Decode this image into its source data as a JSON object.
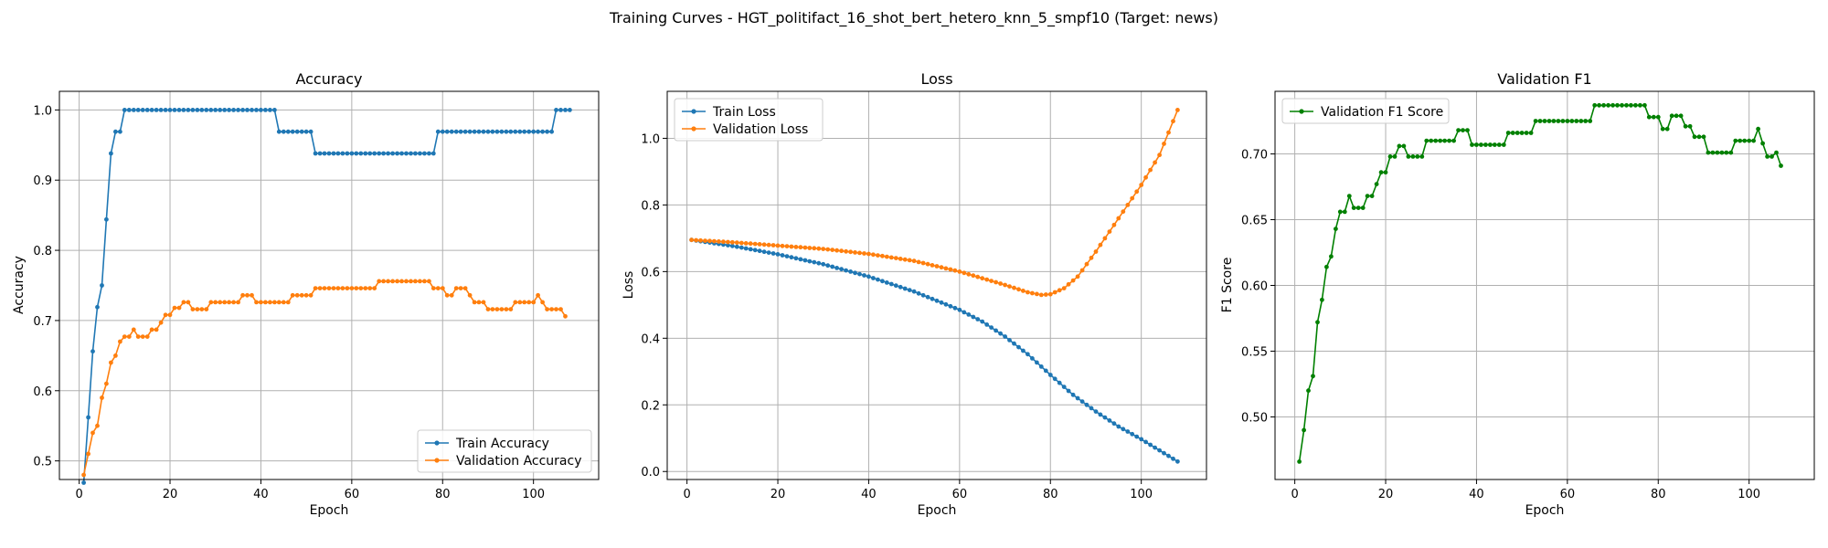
{
  "figure_title": "Training Curves - HGT_politifact_16_shot_bert_hetero_knn_5_smpf10 (Target: news)",
  "colors": {
    "train": "#1f77b4",
    "val": "#ff7f0e",
    "f1": "#008000",
    "grid": "#b0b0b0"
  },
  "chart_data": [
    {
      "type": "line",
      "title": "Accuracy",
      "xlabel": "Epoch",
      "ylabel": "Accuracy",
      "xlim": [
        -4.35,
        114.35
      ],
      "ylim": [
        0.4735,
        1.0265
      ],
      "xticks": [
        0,
        20,
        40,
        60,
        80,
        100
      ],
      "yticks": [
        0.5,
        0.6,
        0.7,
        0.8,
        0.9,
        1.0
      ],
      "ytick_labels": [
        "0.5",
        "0.6",
        "0.7",
        "0.8",
        "0.9",
        "1.0"
      ],
      "grid": true,
      "legend_position": "lower-right",
      "series": [
        {
          "name": "Train Accuracy",
          "color": "#1f77b4",
          "segments": [
            [
              1,
              0.469
            ],
            [
              2,
              0.562
            ],
            [
              3,
              0.656
            ],
            [
              4,
              0.719
            ],
            [
              5,
              0.75
            ],
            [
              6,
              0.844
            ],
            [
              7,
              0.938
            ],
            [
              8,
              0.969
            ],
            [
              9,
              0.969
            ],
            [
              10,
              1.0
            ],
            [
              43,
              1.0
            ],
            [
              44,
              0.969
            ],
            [
              51,
              0.969
            ],
            [
              52,
              0.938
            ],
            [
              78,
              0.938
            ],
            [
              79,
              0.969
            ],
            [
              104,
              0.969
            ],
            [
              105,
              1.0
            ],
            [
              108,
              1.0
            ]
          ]
        },
        {
          "name": "Validation Accuracy",
          "color": "#ff7f0e",
          "segments": [
            [
              1,
              0.48
            ],
            [
              2,
              0.51
            ],
            [
              3,
              0.54
            ],
            [
              4,
              0.55
            ],
            [
              5,
              0.59
            ],
            [
              6,
              0.61
            ],
            [
              7,
              0.64
            ],
            [
              8,
              0.65
            ],
            [
              9,
              0.67
            ],
            [
              10,
              0.677
            ],
            [
              11,
              0.677
            ],
            [
              12,
              0.687
            ],
            [
              13,
              0.677
            ],
            [
              15,
              0.677
            ],
            [
              16,
              0.687
            ],
            [
              17,
              0.687
            ],
            [
              18,
              0.697
            ],
            [
              19,
              0.708
            ],
            [
              20,
              0.708
            ],
            [
              21,
              0.718
            ],
            [
              22,
              0.718
            ],
            [
              23,
              0.726
            ],
            [
              24,
              0.726
            ],
            [
              25,
              0.716
            ],
            [
              28,
              0.716
            ],
            [
              29,
              0.726
            ],
            [
              35,
              0.726
            ],
            [
              36,
              0.736
            ],
            [
              38,
              0.736
            ],
            [
              39,
              0.726
            ],
            [
              46,
              0.726
            ],
            [
              47,
              0.736
            ],
            [
              51,
              0.736
            ],
            [
              52,
              0.746
            ],
            [
              65,
              0.746
            ],
            [
              66,
              0.756
            ],
            [
              77,
              0.756
            ],
            [
              78,
              0.746
            ],
            [
              80,
              0.746
            ],
            [
              81,
              0.736
            ],
            [
              82,
              0.736
            ],
            [
              83,
              0.746
            ],
            [
              85,
              0.746
            ],
            [
              86,
              0.736
            ],
            [
              87,
              0.726
            ],
            [
              89,
              0.726
            ],
            [
              90,
              0.716
            ],
            [
              95,
              0.716
            ],
            [
              96,
              0.726
            ],
            [
              100,
              0.726
            ],
            [
              101,
              0.736
            ],
            [
              102,
              0.726
            ],
            [
              103,
              0.716
            ],
            [
              106,
              0.716
            ],
            [
              107,
              0.706
            ]
          ]
        }
      ]
    },
    {
      "type": "line",
      "title": "Loss",
      "xlabel": "Epoch",
      "ylabel": "Loss",
      "xlim": [
        -4.35,
        114.35
      ],
      "ylim": [
        -0.024,
        1.141
      ],
      "xticks": [
        0,
        20,
        40,
        60,
        80,
        100
      ],
      "yticks": [
        0.0,
        0.2,
        0.4,
        0.6,
        0.8,
        1.0
      ],
      "ytick_labels": [
        "0.0",
        "0.2",
        "0.4",
        "0.6",
        "0.8",
        "1.0"
      ],
      "grid": true,
      "legend_position": "upper-left",
      "series": [
        {
          "name": "Train Loss",
          "color": "#1f77b4",
          "segments": [
            [
              1,
              0.695
            ],
            [
              10,
              0.677
            ],
            [
              20,
              0.652
            ],
            [
              30,
              0.622
            ],
            [
              40,
              0.585
            ],
            [
              50,
              0.54
            ],
            [
              60,
              0.485
            ],
            [
              65,
              0.45
            ],
            [
              70,
              0.405
            ],
            [
              75,
              0.352
            ],
            [
              80,
              0.29
            ],
            [
              85,
              0.23
            ],
            [
              90,
              0.18
            ],
            [
              95,
              0.135
            ],
            [
              100,
              0.097
            ],
            [
              105,
              0.055
            ],
            [
              108,
              0.03
            ]
          ]
        },
        {
          "name": "Validation Loss",
          "color": "#ff7f0e",
          "segments": [
            [
              1,
              0.695
            ],
            [
              10,
              0.688
            ],
            [
              20,
              0.678
            ],
            [
              30,
              0.668
            ],
            [
              40,
              0.653
            ],
            [
              50,
              0.632
            ],
            [
              60,
              0.6
            ],
            [
              65,
              0.58
            ],
            [
              70,
              0.56
            ],
            [
              75,
              0.538
            ],
            [
              78,
              0.53
            ],
            [
              80,
              0.532
            ],
            [
              83,
              0.55
            ],
            [
              86,
              0.585
            ],
            [
              90,
              0.66
            ],
            [
              95,
              0.76
            ],
            [
              100,
              0.86
            ],
            [
              104,
              0.95
            ],
            [
              108,
              1.085
            ]
          ]
        }
      ]
    },
    {
      "type": "line",
      "title": "Validation F1",
      "xlabel": "Epoch",
      "ylabel": "F1 Score",
      "xlim": [
        -4.35,
        114.35
      ],
      "ylim": [
        0.4524,
        0.7476
      ],
      "xticks": [
        0,
        20,
        40,
        60,
        80,
        100
      ],
      "yticks": [
        0.5,
        0.55,
        0.6,
        0.65,
        0.7
      ],
      "ytick_labels": [
        "0.50",
        "0.55",
        "0.60",
        "0.65",
        "0.70"
      ],
      "grid": true,
      "legend_position": "upper-left",
      "series": [
        {
          "name": "Validation F1 Score",
          "color": "#008000",
          "segments": [
            [
              1,
              0.466
            ],
            [
              2,
              0.49
            ],
            [
              3,
              0.52
            ],
            [
              4,
              0.531
            ],
            [
              5,
              0.572
            ],
            [
              6,
              0.589
            ],
            [
              7,
              0.614
            ],
            [
              8,
              0.622
            ],
            [
              9,
              0.643
            ],
            [
              10,
              0.656
            ],
            [
              11,
              0.656
            ],
            [
              12,
              0.668
            ],
            [
              13,
              0.659
            ],
            [
              15,
              0.659
            ],
            [
              16,
              0.668
            ],
            [
              17,
              0.668
            ],
            [
              18,
              0.677
            ],
            [
              19,
              0.686
            ],
            [
              20,
              0.686
            ],
            [
              21,
              0.698
            ],
            [
              22,
              0.698
            ],
            [
              23,
              0.706
            ],
            [
              24,
              0.706
            ],
            [
              25,
              0.698
            ],
            [
              28,
              0.698
            ],
            [
              29,
              0.71
            ],
            [
              35,
              0.71
            ],
            [
              36,
              0.718
            ],
            [
              38,
              0.718
            ],
            [
              39,
              0.707
            ],
            [
              46,
              0.707
            ],
            [
              47,
              0.716
            ],
            [
              52,
              0.716
            ],
            [
              53,
              0.725
            ],
            [
              65,
              0.725
            ],
            [
              66,
              0.737
            ],
            [
              77,
              0.737
            ],
            [
              78,
              0.728
            ],
            [
              80,
              0.728
            ],
            [
              81,
              0.719
            ],
            [
              82,
              0.719
            ],
            [
              83,
              0.729
            ],
            [
              85,
              0.729
            ],
            [
              86,
              0.721
            ],
            [
              87,
              0.721
            ],
            [
              88,
              0.713
            ],
            [
              90,
              0.713
            ],
            [
              91,
              0.701
            ],
            [
              96,
              0.701
            ],
            [
              97,
              0.71
            ],
            [
              101,
              0.71
            ],
            [
              102,
              0.719
            ],
            [
              103,
              0.708
            ],
            [
              104,
              0.698
            ],
            [
              105,
              0.698
            ],
            [
              106,
              0.701
            ],
            [
              107,
              0.691
            ]
          ]
        }
      ]
    }
  ]
}
